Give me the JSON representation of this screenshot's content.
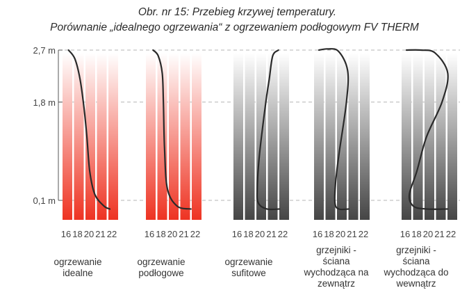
{
  "title": "Obr. nr 15: Przebieg krzywej temperatury.",
  "subtitle": "Porównanie „idealnego ogrzewania“ z ogrzewaniem podłogowym FV THERM",
  "chart_data": {
    "type": "line",
    "title": "Obr. nr 15: Przebieg krzywej temperatury.",
    "subtitle": "Porównanie „idealnego ogrzewania“ z ogrzewaniem podłogowym FV THERM",
    "y_tick_labels": [
      "2,7 m",
      "1,8 m",
      "0,1 m"
    ],
    "y_ticks": [
      2.7,
      1.8,
      0.1
    ],
    "x_tick_labels": [
      "16",
      "18",
      "20",
      "21",
      "22"
    ],
    "x_ticks": [
      16,
      18,
      20,
      21,
      22
    ],
    "grid": "dashed horizontal lines at 2.7, 1.8 and 0.1 m",
    "panels": [
      {
        "label": "ogrzewanie\nidealne",
        "colors": {
          "bottom": "#ee3322",
          "top": "#ffffff",
          "curve": "#2a2a2a"
        },
        "points": [
          {
            "temp": 16.2,
            "height": 2.7
          },
          {
            "temp": 17.3,
            "height": 2.55
          },
          {
            "temp": 18.2,
            "height": 2.2
          },
          {
            "temp": 18.9,
            "height": 1.7
          },
          {
            "temp": 19.4,
            "height": 1.2
          },
          {
            "temp": 19.9,
            "height": 0.6
          },
          {
            "temp": 20.4,
            "height": 0.2
          },
          {
            "temp": 21.2,
            "height": 0.0
          },
          {
            "temp": 21.7,
            "height": -0.05
          }
        ]
      },
      {
        "label": "ogrzewanie\npodłogowe",
        "colors": {
          "bottom": "#ee3322",
          "top": "#ffffff",
          "curve": "#2a2a2a"
        },
        "points": [
          {
            "temp": 16.4,
            "height": 2.7
          },
          {
            "temp": 17.3,
            "height": 2.6
          },
          {
            "temp": 18.0,
            "height": 2.3
          },
          {
            "temp": 18.2,
            "height": 1.8
          },
          {
            "temp": 18.4,
            "height": 1.0
          },
          {
            "temp": 18.9,
            "height": 0.3
          },
          {
            "temp": 20.3,
            "height": 0.0
          },
          {
            "temp": 21.5,
            "height": -0.05
          }
        ]
      },
      {
        "label": "ogrzewanie\nsufitowe",
        "colors": {
          "bottom": "#454545",
          "top": "#ffffff",
          "curve": "#2a2a2a"
        },
        "points": [
          {
            "temp": 21.5,
            "height": 2.7
          },
          {
            "temp": 21.0,
            "height": 2.6
          },
          {
            "temp": 20.7,
            "height": 2.2
          },
          {
            "temp": 20.4,
            "height": 1.8
          },
          {
            "temp": 19.7,
            "height": 0.9
          },
          {
            "temp": 19.3,
            "height": 0.3
          },
          {
            "temp": 19.5,
            "height": 0.05
          },
          {
            "temp": 20.5,
            "height": -0.05
          },
          {
            "temp": 21.6,
            "height": -0.05
          }
        ]
      },
      {
        "label": "grzejniki -\nściana\nwychodząca na\nzewnątrz",
        "colors": {
          "bottom": "#454545",
          "top": "#ffffff",
          "curve": "#2a2a2a"
        },
        "points": [
          {
            "temp": 16.0,
            "height": 2.7
          },
          {
            "temp": 17.5,
            "height": 2.72
          },
          {
            "temp": 19.4,
            "height": 2.68
          },
          {
            "temp": 20.5,
            "height": 2.35
          },
          {
            "temp": 20.4,
            "height": 1.8
          },
          {
            "temp": 19.5,
            "height": 0.9
          },
          {
            "temp": 18.9,
            "height": 0.4
          },
          {
            "temp": 18.8,
            "height": 0.05
          },
          {
            "temp": 19.5,
            "height": -0.05
          },
          {
            "temp": 20.6,
            "height": -0.05
          }
        ]
      },
      {
        "label": "grzejniki -\nściana\nwychodząca do\nwewnątrz",
        "colors": {
          "bottom": "#454545",
          "top": "#ffffff",
          "curve": "#2a2a2a"
        },
        "points": [
          {
            "temp": 16.0,
            "height": 2.7
          },
          {
            "temp": 18.5,
            "height": 2.7
          },
          {
            "temp": 20.5,
            "height": 2.65
          },
          {
            "temp": 21.6,
            "height": 2.3
          },
          {
            "temp": 21.1,
            "height": 1.8
          },
          {
            "temp": 19.5,
            "height": 1.2
          },
          {
            "temp": 17.8,
            "height": 0.6
          },
          {
            "temp": 16.5,
            "height": 0.2
          },
          {
            "temp": 17.2,
            "height": 0.0
          },
          {
            "temp": 19.5,
            "height": -0.05
          },
          {
            "temp": 21.6,
            "height": -0.05
          }
        ]
      }
    ]
  }
}
